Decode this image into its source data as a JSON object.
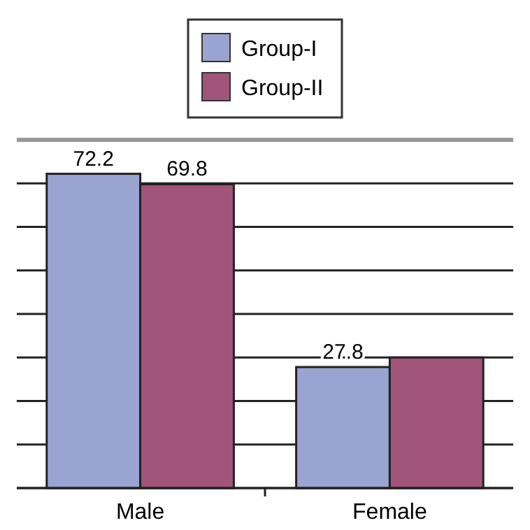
{
  "chart_data": {
    "type": "bar",
    "categories": [
      "Male",
      "Female"
    ],
    "series": [
      {
        "name": "Group-I",
        "color": "#99a4d2",
        "values": [
          72.2,
          27.8
        ],
        "value_labels": [
          "72.2",
          "27.8"
        ]
      },
      {
        "name": "Group-II",
        "color": "#a0547a",
        "values": [
          69.8,
          30
        ],
        "value_labels": [
          "69.8",
          null
        ]
      }
    ],
    "ylim": [
      0,
      80
    ],
    "yticks": [
      {
        "value": 0,
        "label": null
      },
      {
        "value": 10,
        "label": null
      },
      {
        "value": 20,
        "label": null
      },
      {
        "value": 30,
        "label": null
      },
      {
        "value": 40,
        "label": null
      },
      {
        "value": 50,
        "label": null
      },
      {
        "value": 60,
        "label": null
      },
      {
        "value": 70,
        "label": null
      }
    ],
    "tick_labels": "x",
    "grid": "y",
    "legend": "top"
  }
}
